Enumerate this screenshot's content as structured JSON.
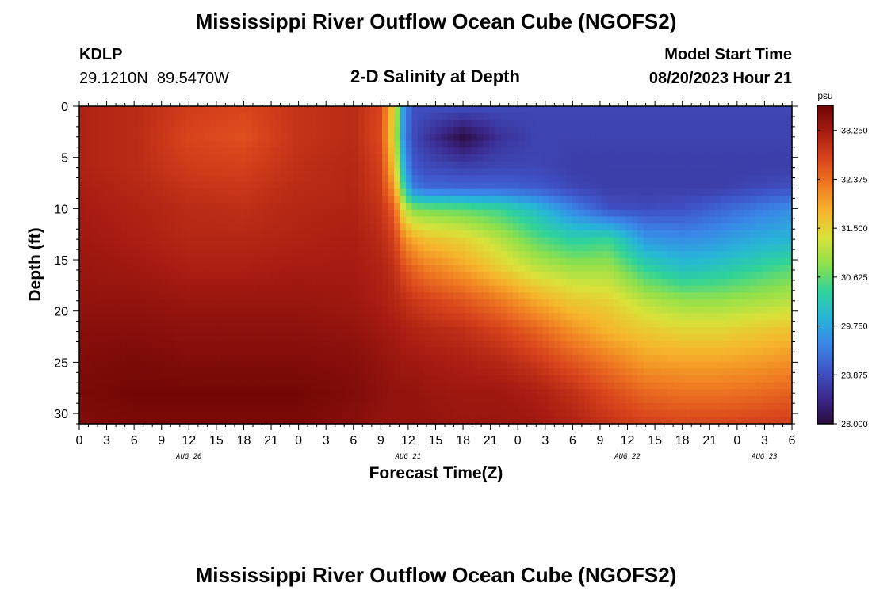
{
  "header": {
    "title": "Mississippi River Outflow Ocean Cube (NGOFS2)",
    "station_id": "KDLP",
    "station_coords": "29.1210N  89.5470W",
    "plot_subtitle": "2-D Salinity at Depth",
    "model_start_label": "Model Start Time",
    "model_start_value": "08/20/2023 Hour 21"
  },
  "footer": {
    "title_repeat": "Mississippi River Outflow Ocean Cube (NGOFS2)"
  },
  "chart_data": {
    "type": "heatmap",
    "xlabel": "Forecast Time(Z)",
    "ylabel": "Depth (ft)",
    "x_unit": "forecast hour (Z)",
    "x_range_hours_from_aug20_00z": [
      0,
      78
    ],
    "x_tick_labels": [
      "0",
      "3",
      "6",
      "9",
      "12",
      "15",
      "18",
      "21",
      "0",
      "3",
      "6",
      "9",
      "12",
      "15",
      "18",
      "21",
      "0",
      "3",
      "6",
      "9",
      "12",
      "15",
      "18",
      "21",
      "0",
      "3",
      "6"
    ],
    "date_labels": [
      {
        "label": "AUG 20",
        "hour": 12
      },
      {
        "label": "AUG 21",
        "hour": 36
      },
      {
        "label": "AUG 22",
        "hour": 60
      },
      {
        "label": "AUG 23",
        "hour": 75
      }
    ],
    "y_range": [
      0,
      31
    ],
    "y_inverted": true,
    "y_ticks": [
      0,
      5,
      10,
      15,
      20,
      25,
      30
    ],
    "colorbar": {
      "unit": "psu",
      "min": 28.0,
      "max": 33.7,
      "ticks": [
        "33.250",
        "32.375",
        "31.500",
        "30.625",
        "29.750",
        "28.875",
        "28.000"
      ],
      "tick_values": [
        33.25,
        32.375,
        31.5,
        30.625,
        29.75,
        28.875,
        28.0
      ],
      "colormap": [
        "#2a0a3c",
        "#3b2a8e",
        "#3f55c9",
        "#3a86e8",
        "#27b6d8",
        "#2fd39a",
        "#8ee04c",
        "#d9e23a",
        "#f6b52c",
        "#f07a22",
        "#d8441c",
        "#a81c12",
        "#6e0505"
      ]
    },
    "salinity_grid": {
      "x_hours": [
        0,
        6,
        12,
        18,
        24,
        30,
        33,
        34.5,
        35.5,
        36.5,
        38,
        42,
        46,
        50,
        54,
        58,
        62,
        66,
        70,
        74,
        78
      ],
      "depths_ft": [
        0,
        3,
        6,
        8,
        10,
        13,
        16,
        19,
        22,
        25,
        28,
        31
      ],
      "values_psu": [
        [
          33.15,
          33.05,
          32.85,
          32.75,
          32.95,
          33.05,
          32.75,
          31.4,
          29.6,
          28.9,
          28.9,
          28.9,
          28.85,
          28.8,
          28.8,
          28.8,
          28.8,
          28.8,
          28.8,
          28.8,
          28.8
        ],
        [
          33.15,
          33.05,
          32.75,
          32.65,
          32.95,
          33.05,
          32.7,
          31.3,
          29.5,
          28.85,
          28.6,
          28.05,
          28.55,
          28.75,
          28.75,
          28.75,
          28.75,
          28.75,
          28.75,
          28.75,
          28.75
        ],
        [
          33.15,
          33.05,
          32.85,
          32.8,
          33.0,
          33.1,
          32.8,
          31.6,
          29.9,
          29.0,
          28.85,
          28.75,
          28.8,
          28.8,
          28.7,
          28.7,
          28.7,
          28.7,
          28.7,
          28.7,
          28.7
        ],
        [
          33.2,
          33.1,
          32.95,
          32.9,
          33.05,
          33.1,
          32.85,
          32.0,
          30.4,
          29.35,
          29.15,
          29.1,
          29.1,
          29.0,
          28.8,
          28.7,
          28.7,
          28.7,
          28.7,
          28.8,
          28.9
        ],
        [
          33.25,
          33.15,
          33.05,
          33.0,
          33.1,
          33.15,
          32.95,
          32.5,
          31.3,
          30.8,
          30.7,
          30.6,
          30.4,
          30.0,
          29.4,
          28.9,
          28.85,
          28.9,
          29.1,
          29.3,
          29.5
        ],
        [
          33.3,
          33.2,
          33.1,
          33.1,
          33.15,
          33.2,
          33.05,
          32.8,
          32.2,
          31.9,
          31.7,
          31.5,
          31.1,
          30.6,
          30.3,
          30.4,
          29.6,
          29.5,
          29.6,
          29.8,
          29.9
        ],
        [
          33.35,
          33.3,
          33.2,
          33.2,
          33.25,
          33.25,
          33.15,
          33.0,
          32.7,
          32.5,
          32.3,
          32.0,
          31.6,
          31.2,
          31.0,
          31.0,
          30.4,
          30.1,
          30.2,
          30.4,
          30.6
        ],
        [
          33.4,
          33.4,
          33.35,
          33.35,
          33.35,
          33.3,
          33.2,
          33.1,
          33.0,
          32.9,
          32.8,
          32.6,
          32.3,
          31.9,
          31.6,
          31.5,
          31.1,
          30.9,
          30.9,
          31.0,
          31.1
        ],
        [
          33.5,
          33.5,
          33.45,
          33.45,
          33.45,
          33.4,
          33.3,
          33.25,
          33.2,
          33.15,
          33.1,
          33.0,
          32.8,
          32.5,
          32.1,
          31.8,
          31.6,
          31.5,
          31.5,
          31.6,
          31.7
        ],
        [
          33.55,
          33.6,
          33.55,
          33.55,
          33.55,
          33.5,
          33.4,
          33.35,
          33.3,
          33.3,
          33.25,
          33.2,
          33.1,
          32.9,
          32.6,
          32.3,
          32.0,
          31.95,
          31.95,
          32.0,
          32.1
        ],
        [
          33.6,
          33.65,
          33.65,
          33.65,
          33.65,
          33.55,
          33.45,
          33.4,
          33.4,
          33.4,
          33.35,
          33.3,
          33.3,
          33.2,
          33.0,
          32.7,
          32.45,
          32.35,
          32.35,
          32.4,
          32.5
        ],
        [
          33.55,
          33.6,
          33.6,
          33.6,
          33.6,
          33.5,
          33.4,
          33.4,
          33.4,
          33.4,
          33.4,
          33.35,
          33.35,
          33.3,
          33.15,
          32.95,
          32.8,
          32.75,
          32.75,
          32.8,
          32.85
        ]
      ]
    }
  }
}
